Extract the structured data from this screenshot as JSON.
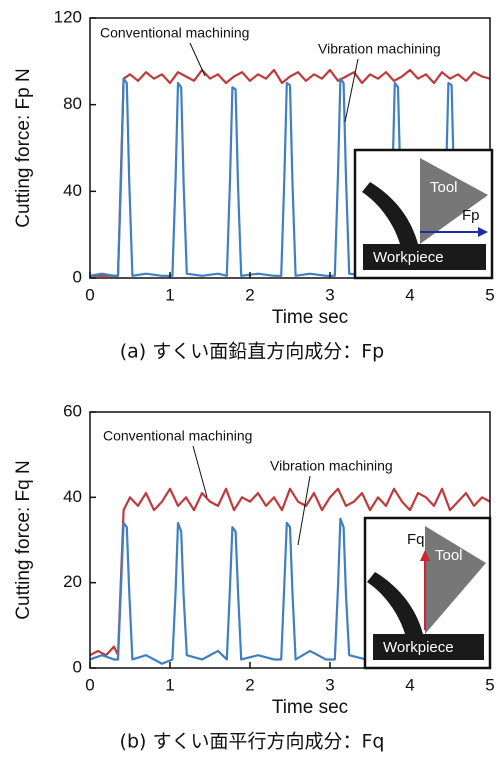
{
  "chart_data": [
    {
      "type": "line",
      "caption": "(a) すくい面鉛直方向成分：Fp",
      "xlabel": "Time sec",
      "ylabel": "Cutting force: Fp N",
      "xlim": [
        0,
        5
      ],
      "xticks": [
        0,
        1,
        2,
        3,
        4,
        5
      ],
      "ylim": [
        0,
        120
      ],
      "yticks": [
        0,
        40,
        80,
        120
      ],
      "inset": {
        "tool": "Tool",
        "workpiece": "Workpiece",
        "force": "Fp"
      },
      "series": [
        {
          "name": "Conventional machining",
          "color": "#c0393b",
          "x": [
            0,
            0.1,
            0.2,
            0.3,
            0.35,
            0.42,
            0.5,
            0.6,
            0.7,
            0.8,
            0.9,
            1.0,
            1.1,
            1.2,
            1.3,
            1.4,
            1.5,
            1.6,
            1.7,
            1.8,
            1.9,
            2.0,
            2.1,
            2.2,
            2.3,
            2.4,
            2.5,
            2.6,
            2.7,
            2.8,
            2.9,
            3.0,
            3.1,
            3.2,
            3.3,
            3.4,
            3.5,
            3.6,
            3.7,
            3.8,
            3.9,
            4.0,
            4.1,
            4.2,
            4.3,
            4.4,
            4.5,
            4.6,
            4.7,
            4.8,
            4.9,
            5.0
          ],
          "values": [
            1,
            1,
            1,
            1,
            1,
            92,
            94,
            91,
            95,
            92,
            94,
            90,
            95,
            93,
            91,
            96,
            92,
            94,
            90,
            93,
            95,
            91,
            94,
            92,
            96,
            90,
            93,
            95,
            91,
            94,
            92,
            96,
            91,
            93,
            95,
            90,
            94,
            92,
            95,
            91,
            93,
            96,
            92,
            94,
            90,
            95,
            92,
            94,
            91,
            95,
            93,
            92
          ]
        },
        {
          "name": "Vibration machining",
          "color": "#3f7fc2",
          "x": [
            0,
            0.15,
            0.3,
            0.35,
            0.39,
            0.42,
            0.46,
            0.49,
            0.53,
            0.7,
            0.9,
            1.03,
            1.07,
            1.1,
            1.14,
            1.17,
            1.21,
            1.4,
            1.6,
            1.71,
            1.75,
            1.78,
            1.82,
            1.85,
            1.89,
            2.1,
            2.3,
            2.39,
            2.43,
            2.46,
            2.5,
            2.53,
            2.57,
            2.75,
            2.95,
            3.06,
            3.1,
            3.13,
            3.17,
            3.2,
            3.24,
            3.45,
            3.65,
            3.74,
            3.78,
            3.81,
            3.85,
            3.88,
            3.92,
            4.1,
            4.3,
            4.41,
            4.45,
            4.48,
            4.52,
            4.55,
            4.59,
            4.75,
            5.0
          ],
          "values": [
            1,
            2,
            1,
            1,
            48,
            92,
            90,
            45,
            1,
            2,
            1,
            1,
            46,
            90,
            88,
            44,
            2,
            1,
            2,
            1,
            45,
            88,
            87,
            43,
            1,
            2,
            1,
            1,
            47,
            90,
            89,
            45,
            1,
            2,
            1,
            1,
            48,
            92,
            90,
            46,
            2,
            1,
            2,
            1,
            46,
            90,
            88,
            45,
            1,
            2,
            1,
            1,
            46,
            90,
            89,
            44,
            1,
            2,
            1
          ]
        }
      ]
    },
    {
      "type": "line",
      "caption": "(b) すくい面平行方向成分：Fq",
      "xlabel": "Time sec",
      "ylabel": "Cutting force: Fq N",
      "xlim": [
        0,
        5
      ],
      "xticks": [
        0,
        1,
        2,
        3,
        4,
        5
      ],
      "ylim": [
        0,
        60
      ],
      "yticks": [
        0,
        20,
        40,
        60
      ],
      "inset": {
        "tool": "Tool",
        "workpiece": "Workpiece",
        "force": "Fq"
      },
      "series": [
        {
          "name": "Conventional machining",
          "color": "#c0393b",
          "x": [
            0,
            0.1,
            0.2,
            0.3,
            0.35,
            0.42,
            0.5,
            0.6,
            0.7,
            0.8,
            0.9,
            1.0,
            1.1,
            1.2,
            1.3,
            1.4,
            1.5,
            1.6,
            1.7,
            1.8,
            1.9,
            2.0,
            2.1,
            2.2,
            2.3,
            2.4,
            2.5,
            2.6,
            2.7,
            2.8,
            2.9,
            3.0,
            3.1,
            3.2,
            3.3,
            3.4,
            3.5,
            3.6,
            3.7,
            3.8,
            3.9,
            4.0,
            4.1,
            4.2,
            4.3,
            4.4,
            4.5,
            4.6,
            4.7,
            4.8,
            4.9,
            5.0
          ],
          "values": [
            3,
            4,
            3,
            5,
            3,
            37,
            40,
            38,
            41,
            37,
            39,
            42,
            38,
            40,
            37,
            41,
            39,
            38,
            42,
            37,
            40,
            39,
            41,
            38,
            40,
            37,
            42,
            39,
            38,
            41,
            37,
            40,
            42,
            38,
            39,
            41,
            37,
            40,
            38,
            42,
            39,
            37,
            41,
            40,
            38,
            42,
            37,
            39,
            41,
            38,
            40,
            39
          ]
        },
        {
          "name": "Vibration machining",
          "color": "#3f7fc2",
          "x": [
            0,
            0.15,
            0.3,
            0.35,
            0.39,
            0.42,
            0.46,
            0.49,
            0.53,
            0.7,
            0.9,
            1.03,
            1.07,
            1.1,
            1.14,
            1.17,
            1.21,
            1.4,
            1.6,
            1.71,
            1.75,
            1.78,
            1.82,
            1.85,
            1.89,
            2.1,
            2.3,
            2.39,
            2.43,
            2.46,
            2.5,
            2.53,
            2.57,
            2.75,
            2.95,
            3.06,
            3.1,
            3.13,
            3.17,
            3.2,
            3.24,
            3.45,
            3.65,
            3.74,
            3.78,
            3.81,
            3.85,
            3.88,
            3.92,
            4.1,
            4.3,
            4.41,
            4.45,
            4.48,
            4.52,
            4.55,
            4.59,
            4.75,
            5.0
          ],
          "values": [
            2,
            3,
            2,
            2,
            20,
            34,
            33,
            18,
            2,
            3,
            1,
            2,
            18,
            34,
            32,
            17,
            3,
            2,
            4,
            2,
            19,
            33,
            32,
            18,
            2,
            3,
            2,
            2,
            20,
            34,
            33,
            18,
            2,
            4,
            2,
            2,
            19,
            35,
            33,
            17,
            3,
            2,
            3,
            2,
            18,
            34,
            33,
            19,
            2,
            3,
            2,
            2,
            19,
            34,
            32,
            18,
            2,
            3,
            2
          ]
        }
      ]
    }
  ]
}
